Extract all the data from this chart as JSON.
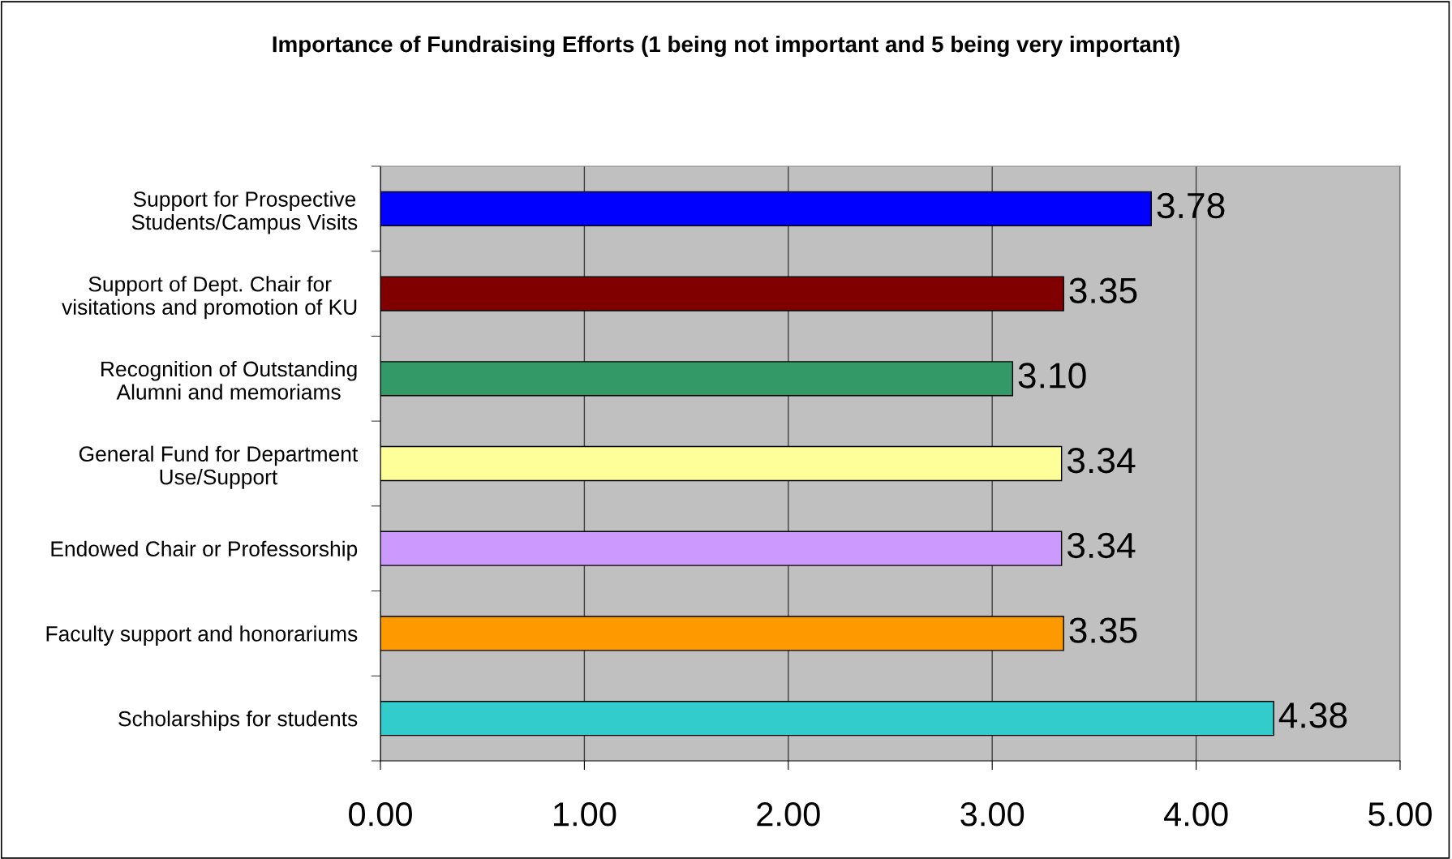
{
  "chart_data": {
    "type": "bar",
    "orientation": "horizontal",
    "title": "Importance of Fundraising Efforts (1 being not important and 5 being very important)",
    "categories": [
      "Support for Prospective\nStudents/Campus Visits",
      "Support of Dept. Chair for\nvisitations and promotion of KU",
      "Recognition of Outstanding\nAlumni and memoriams",
      "General Fund for Department\nUse/Support",
      "Endowed Chair or Professorship",
      "Faculty support and honorariums",
      "Scholarships for students"
    ],
    "values": [
      3.78,
      3.35,
      3.1,
      3.34,
      3.34,
      3.35,
      4.38
    ],
    "colors": [
      "#0000ff",
      "#800000",
      "#339966",
      "#ffff99",
      "#cc99ff",
      "#ff9900",
      "#33cccc"
    ],
    "value_labels": [
      "3.78",
      "3.35",
      "3.10",
      "3.34",
      "3.34",
      "3.35",
      "4.38"
    ],
    "xlim": [
      0,
      5
    ],
    "xticks": [
      {
        "value": 0,
        "label": "0.00"
      },
      {
        "value": 1,
        "label": "1.00"
      },
      {
        "value": 2,
        "label": "2.00"
      },
      {
        "value": 3,
        "label": "3.00"
      },
      {
        "value": 4,
        "label": "4.00"
      },
      {
        "value": 5,
        "label": "5.00"
      }
    ],
    "grid": "x",
    "legend": false
  }
}
